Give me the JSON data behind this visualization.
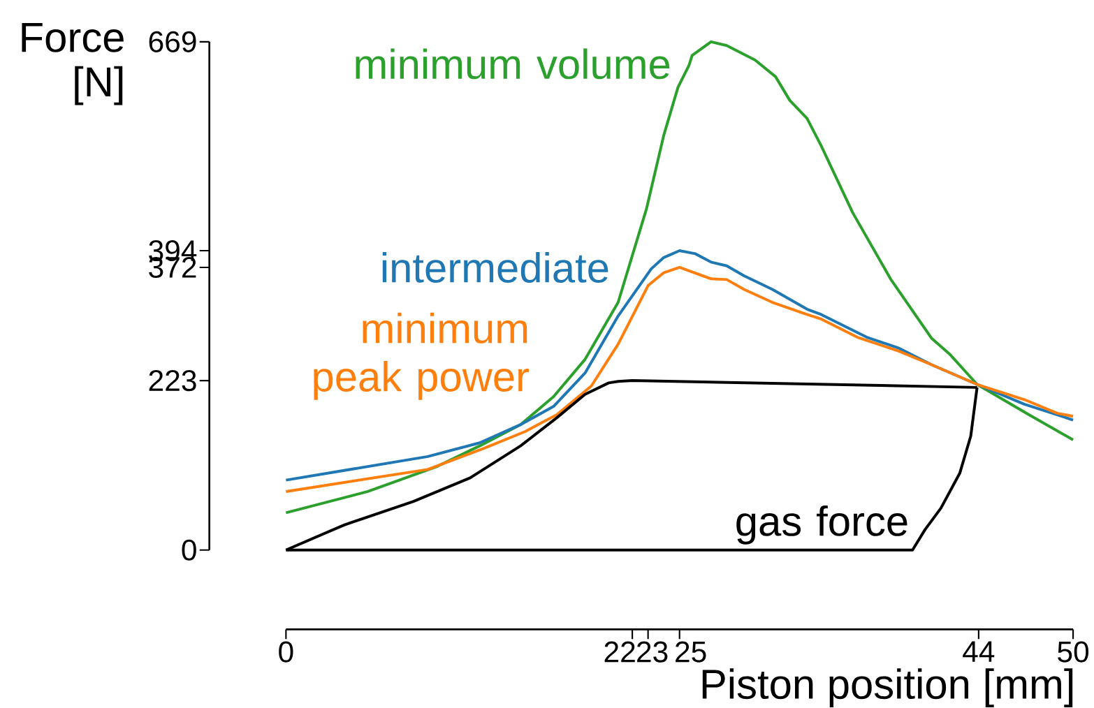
{
  "chart_data": {
    "type": "line",
    "xlabel": "Piston position [mm]",
    "ylabel": "Force [N]",
    "xlim": [
      0,
      50
    ],
    "ylim": [
      0,
      669
    ],
    "xticks": [
      0,
      22,
      23,
      25,
      44,
      50
    ],
    "yticks": [
      0,
      223,
      372,
      394,
      669
    ],
    "series": [
      {
        "name": "minimum volume",
        "color": "#2ca02c",
        "x": [
          0,
          5.2,
          9.6,
          12.3,
          14.9,
          17.0,
          19.0,
          21.1,
          22.9,
          24.0,
          24.9,
          25.6,
          25.8,
          27.0,
          28.0,
          29.8,
          31.1,
          32.0,
          33.1,
          34.0,
          36.0,
          38.4,
          41.0,
          42.2,
          43.9,
          47.2,
          50
        ],
        "values": [
          49,
          77,
          110,
          137,
          165,
          202,
          251,
          326,
          449,
          546,
          609,
          638,
          651,
          669,
          664,
          645,
          623,
          592,
          568,
          532,
          444,
          357,
          279,
          257,
          218,
          178,
          145
        ]
      },
      {
        "name": "intermediate",
        "color": "#1f77b4",
        "x": [
          0,
          9.0,
          12.3,
          14.9,
          17.0,
          19.0,
          21.1,
          23.2,
          24.0,
          25.0,
          26.0,
          27.0,
          28.0,
          29.1,
          30.9,
          33.1,
          34.0,
          36.9,
          38.9,
          41.0,
          43.9,
          46.9,
          49.0,
          50
        ],
        "values": [
          92,
          123,
          141,
          165,
          189,
          233,
          308,
          370,
          385,
          394,
          390,
          379,
          374,
          361,
          343,
          317,
          310,
          280,
          266,
          244,
          218,
          192,
          178,
          171
        ]
      },
      {
        "name": "minimum peak power",
        "color": "#ff7f0e",
        "x": [
          0,
          9.0,
          12.6,
          15.2,
          17.2,
          19.4,
          21.1,
          23.0,
          24.0,
          25.0,
          27.0,
          28.0,
          29.1,
          30.9,
          33.1,
          34.0,
          36.3,
          38.9,
          41.0,
          43.9,
          46.9,
          49.0,
          50
        ],
        "values": [
          77,
          106,
          134,
          156,
          178,
          216,
          271,
          348,
          365,
          372,
          357,
          356,
          343,
          326,
          310,
          304,
          280,
          262,
          244,
          218,
          198,
          180,
          176
        ]
      },
      {
        "name": "gas force",
        "color": "#000000",
        "x": [
          0,
          3.7,
          8.1,
          11.7,
          14.9,
          17.2,
          19.0,
          20.5,
          21.1,
          22.0,
          43.9
        ],
        "values": [
          0,
          33,
          64,
          95,
          137,
          174,
          205,
          220,
          222,
          223,
          214
        ]
      },
      {
        "color": "#000000",
        "x": [
          43.9,
          43.5,
          42.8,
          41.6,
          40.6,
          39.8,
          0
        ],
        "values": [
          214,
          150,
          101,
          55,
          27,
          0,
          0
        ]
      }
    ]
  }
}
